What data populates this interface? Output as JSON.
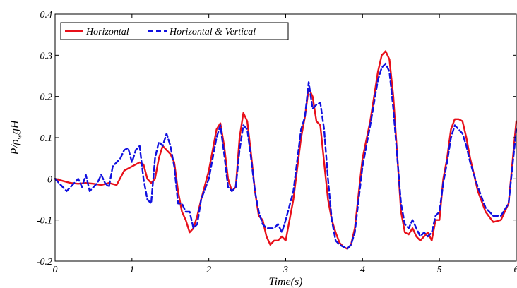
{
  "chart_data": {
    "type": "line",
    "title": "",
    "xlabel": "Time(s)",
    "ylabel": "P/ρ_w gH",
    "ylabel_parts": {
      "base": "P/ρ",
      "sub": "w",
      "tail": "gH"
    },
    "xlim": [
      0,
      6
    ],
    "ylim": [
      -0.2,
      0.4
    ],
    "x_ticks": [
      0,
      1,
      2,
      3,
      4,
      5,
      6
    ],
    "x_tick_labels": [
      "0",
      "1",
      "2",
      "3",
      "4",
      "5",
      "6"
    ],
    "y_ticks": [
      -0.2,
      -0.1,
      0,
      0.1,
      0.2,
      0.3,
      0.4
    ],
    "y_tick_labels": [
      "-0.2",
      "-0.1",
      "0",
      "0.1",
      "0.2",
      "0.3",
      "0.4"
    ],
    "grid": false,
    "legend_position": "top-left",
    "series": [
      {
        "name": "Horizontal",
        "color": "#e8101a",
        "dash": "solid",
        "x": [
          0,
          0.1,
          0.2,
          0.3,
          0.4,
          0.5,
          0.6,
          0.7,
          0.8,
          0.9,
          1.0,
          1.1,
          1.15,
          1.2,
          1.25,
          1.3,
          1.35,
          1.4,
          1.45,
          1.5,
          1.55,
          1.6,
          1.65,
          1.7,
          1.75,
          1.8,
          1.85,
          1.9,
          2.0,
          2.1,
          2.15,
          2.2,
          2.25,
          2.3,
          2.35,
          2.4,
          2.45,
          2.5,
          2.55,
          2.6,
          2.65,
          2.7,
          2.75,
          2.8,
          2.85,
          2.9,
          2.95,
          3.0,
          3.1,
          3.2,
          3.25,
          3.3,
          3.35,
          3.4,
          3.45,
          3.5,
          3.55,
          3.6,
          3.65,
          3.7,
          3.75,
          3.8,
          3.85,
          3.9,
          4.0,
          4.1,
          4.2,
          4.25,
          4.3,
          4.35,
          4.4,
          4.5,
          4.55,
          4.6,
          4.65,
          4.7,
          4.75,
          4.8,
          4.85,
          4.9,
          4.95,
          5.0,
          5.05,
          5.1,
          5.15,
          5.2,
          5.25,
          5.3,
          5.35,
          5.4,
          5.5,
          5.6,
          5.7,
          5.8,
          5.9,
          6.0
        ],
        "y": [
          0.0,
          -0.005,
          -0.01,
          -0.012,
          -0.01,
          -0.012,
          -0.015,
          -0.01,
          -0.015,
          0.02,
          0.03,
          0.04,
          0.035,
          0.0,
          -0.01,
          0.0,
          0.05,
          0.08,
          0.07,
          0.06,
          0.04,
          -0.03,
          -0.08,
          -0.1,
          -0.13,
          -0.12,
          -0.09,
          -0.05,
          0.02,
          0.12,
          0.135,
          0.08,
          0.0,
          -0.03,
          -0.02,
          0.1,
          0.16,
          0.14,
          0.06,
          -0.03,
          -0.09,
          -0.1,
          -0.14,
          -0.16,
          -0.15,
          -0.15,
          -0.14,
          -0.15,
          -0.05,
          0.1,
          0.15,
          0.22,
          0.2,
          0.14,
          0.13,
          0.04,
          -0.05,
          -0.1,
          -0.13,
          -0.155,
          -0.165,
          -0.17,
          -0.16,
          -0.12,
          0.05,
          0.14,
          0.26,
          0.3,
          0.31,
          0.29,
          0.2,
          -0.08,
          -0.13,
          -0.135,
          -0.12,
          -0.14,
          -0.15,
          -0.14,
          -0.13,
          -0.15,
          -0.1,
          -0.1,
          0.0,
          0.05,
          0.12,
          0.145,
          0.145,
          0.14,
          0.1,
          0.05,
          -0.03,
          -0.08,
          -0.105,
          -0.1,
          -0.06,
          0.14
        ]
      },
      {
        "name": "Horizontal & Vertical",
        "color": "#1010e0",
        "dash": "dashed",
        "x": [
          0,
          0.05,
          0.1,
          0.15,
          0.2,
          0.25,
          0.3,
          0.35,
          0.4,
          0.45,
          0.5,
          0.55,
          0.6,
          0.65,
          0.7,
          0.75,
          0.8,
          0.85,
          0.9,
          0.95,
          1.0,
          1.05,
          1.1,
          1.15,
          1.2,
          1.25,
          1.3,
          1.35,
          1.4,
          1.45,
          1.5,
          1.55,
          1.6,
          1.65,
          1.7,
          1.75,
          1.8,
          1.85,
          1.9,
          2.0,
          2.1,
          2.15,
          2.2,
          2.25,
          2.3,
          2.35,
          2.4,
          2.45,
          2.5,
          2.55,
          2.6,
          2.65,
          2.7,
          2.75,
          2.8,
          2.85,
          2.9,
          2.95,
          3.0,
          3.1,
          3.2,
          3.25,
          3.3,
          3.35,
          3.4,
          3.45,
          3.5,
          3.55,
          3.6,
          3.65,
          3.7,
          3.75,
          3.8,
          3.85,
          3.9,
          4.0,
          4.1,
          4.2,
          4.25,
          4.3,
          4.35,
          4.4,
          4.5,
          4.55,
          4.6,
          4.65,
          4.7,
          4.75,
          4.8,
          4.85,
          4.9,
          4.95,
          5.0,
          5.05,
          5.1,
          5.15,
          5.2,
          5.25,
          5.3,
          5.35,
          5.4,
          5.5,
          5.6,
          5.7,
          5.8,
          5.9,
          6.0
        ],
        "y": [
          0.0,
          -0.01,
          -0.02,
          -0.03,
          -0.02,
          -0.01,
          0.0,
          -0.02,
          0.01,
          -0.03,
          -0.02,
          -0.01,
          0.01,
          -0.01,
          -0.02,
          0.03,
          0.04,
          0.05,
          0.07,
          0.075,
          0.04,
          0.07,
          0.08,
          0.0,
          -0.05,
          -0.06,
          0.05,
          0.09,
          0.08,
          0.11,
          0.08,
          0.03,
          -0.06,
          -0.06,
          -0.08,
          -0.08,
          -0.12,
          -0.11,
          -0.05,
          0.0,
          0.1,
          0.13,
          0.06,
          -0.02,
          -0.03,
          -0.02,
          0.07,
          0.13,
          0.12,
          0.05,
          -0.03,
          -0.08,
          -0.11,
          -0.12,
          -0.12,
          -0.12,
          -0.11,
          -0.13,
          -0.1,
          -0.03,
          0.12,
          0.15,
          0.235,
          0.17,
          0.18,
          0.185,
          0.12,
          0.0,
          -0.1,
          -0.15,
          -0.16,
          -0.165,
          -0.17,
          -0.16,
          -0.13,
          0.03,
          0.13,
          0.24,
          0.27,
          0.28,
          0.26,
          0.17,
          -0.06,
          -0.11,
          -0.12,
          -0.1,
          -0.12,
          -0.14,
          -0.13,
          -0.14,
          -0.13,
          -0.09,
          -0.08,
          -0.01,
          0.04,
          0.1,
          0.13,
          0.12,
          0.11,
          0.08,
          0.04,
          -0.02,
          -0.07,
          -0.09,
          -0.09,
          -0.06,
          0.12
        ]
      }
    ]
  }
}
